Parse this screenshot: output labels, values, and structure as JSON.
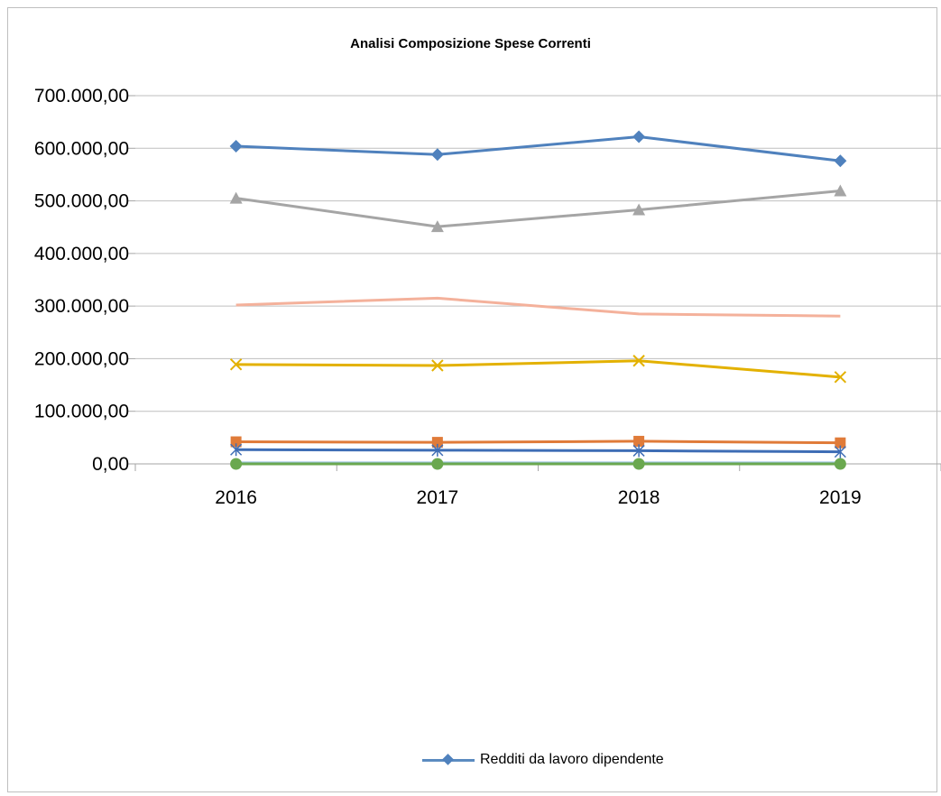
{
  "chart_data": {
    "type": "line",
    "title": "Analisi Composizione Spese Correnti",
    "categories": [
      "2016",
      "2017",
      "2018",
      "2019"
    ],
    "ylim": [
      0,
      700000
    ],
    "y_ticks": [
      "0,00",
      "100.000,00",
      "200.000,00",
      "300.000,00",
      "400.000,00",
      "500.000,00",
      "600.000,00",
      "700.000,00"
    ],
    "grid": true,
    "legend_position": "bottom",
    "series": [
      {
        "name": "Redditi da lavoro dipendente",
        "values": [
          604000,
          588000,
          622000,
          576000
        ],
        "color": "#4f81bd",
        "marker": "diamond"
      },
      {
        "values": [
          42000,
          41000,
          43000,
          40000
        ],
        "color": "#e07b39",
        "marker": "square"
      },
      {
        "values": [
          505000,
          451000,
          483000,
          519000
        ],
        "color": "#a5a5a5",
        "marker": "triangle"
      },
      {
        "values": [
          189000,
          187000,
          196000,
          165000
        ],
        "color": "#e3b100",
        "marker": "x"
      },
      {
        "values": [
          27000,
          26000,
          25000,
          23000
        ],
        "color": "#3e6db5",
        "marker": "star"
      },
      {
        "values": [
          0,
          0,
          0,
          0
        ],
        "color": "#6aa84f",
        "marker": "circle"
      },
      {
        "values": [
          302000,
          315000,
          285000,
          281000
        ],
        "color": "#f4b19b",
        "marker": "none"
      },
      {
        "values": [
          1000,
          1000,
          1000,
          1000
        ],
        "color": "#9ec3e0",
        "marker": "none"
      }
    ]
  },
  "legend": {
    "label": "Redditi da lavoro dipendente"
  }
}
